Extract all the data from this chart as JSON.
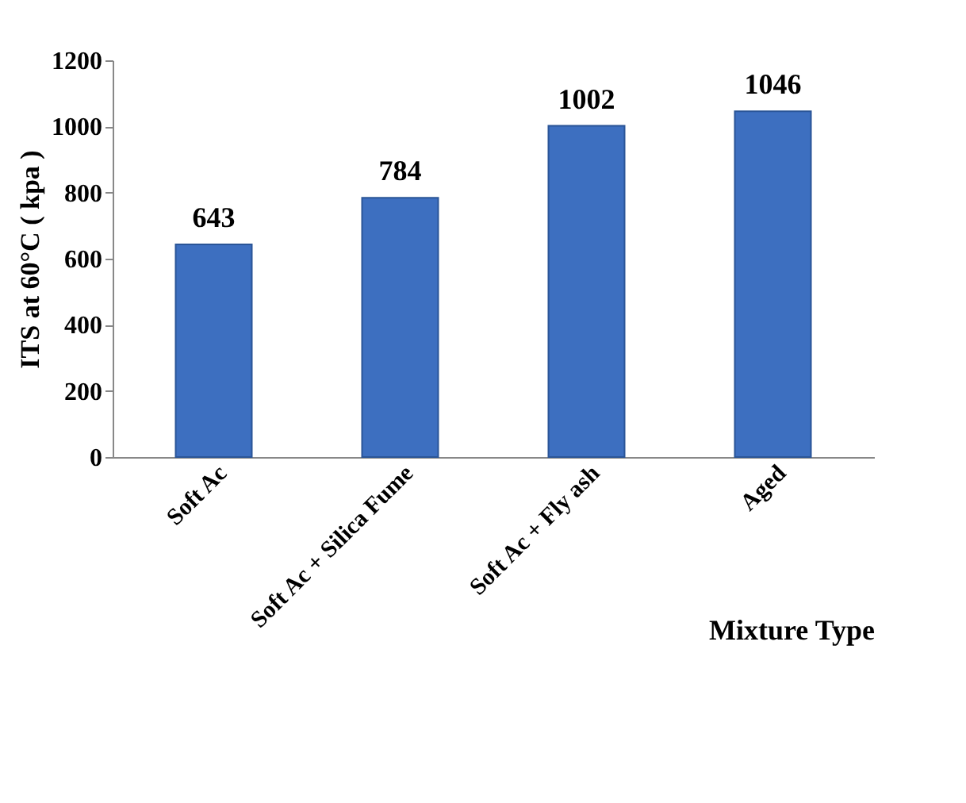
{
  "chart_data": {
    "type": "bar",
    "xlabel": "Mixture Type",
    "ylabel": "ITS at 60°C ( kpa )",
    "categories": [
      "Soft Ac",
      "Soft Ac + Silica Fume",
      "Soft Ac + Fly ash",
      "Aged"
    ],
    "values": [
      643,
      784,
      1002,
      1046
    ],
    "color": "#3d6fc0",
    "ylim": [
      0,
      1200
    ],
    "yticks": [
      0,
      200,
      400,
      600,
      800,
      1000,
      1200
    ],
    "data_labels": true,
    "grid": false
  }
}
